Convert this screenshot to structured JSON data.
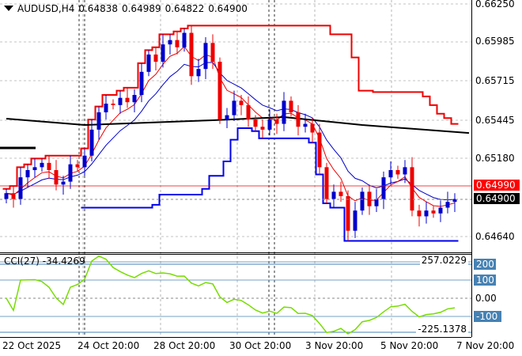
{
  "header": {
    "symbol": "AUDUSD,H4",
    "open": "0.64838",
    "high": "0.64989",
    "low": "0.64822",
    "close": "0.64900"
  },
  "price_axis": {
    "labels": [
      "0.66250",
      "0.65985",
      "0.65715",
      "0.65445",
      "0.65180",
      "0.64640"
    ],
    "ask_label": "0.64990",
    "bid_label": "0.64900"
  },
  "cci": {
    "label": "CCI(27) -34.4269",
    "max_label": "257.0229",
    "min_label": "-225.1378",
    "levels": [
      "200",
      "100",
      "0.00",
      "-100"
    ]
  },
  "time_axis": [
    "22 Oct 2025",
    "24 Oct 20:00",
    "28 Oct 20:00",
    "30 Oct 20:00",
    "3 Nov 20:00",
    "5 Nov 20:00",
    "7 Nov 20:00"
  ],
  "colors": {
    "bull": "#0000cc",
    "bear": "#ee0000",
    "cci": "#77dd00",
    "ma_long": "#000000",
    "level_box": "#4682b4"
  },
  "chart_data": {
    "type": "candlestick",
    "closes": [
      0.6494,
      0.649,
      0.6505,
      0.651,
      0.6512,
      0.6515,
      0.651,
      0.65,
      0.6502,
      0.6514,
      0.6512,
      0.652,
      0.6538,
      0.655,
      0.6556,
      0.6555,
      0.656,
      0.6557,
      0.6562,
      0.6578,
      0.659,
      0.6585,
      0.6597,
      0.66,
      0.6595,
      0.6605,
      0.6575,
      0.658,
      0.6598,
      0.6585,
      0.6545,
      0.6548,
      0.6558,
      0.6555,
      0.6545,
      0.654,
      0.6538,
      0.6545,
      0.6542,
      0.6558,
      0.655,
      0.654,
      0.6542,
      0.6536,
      0.6512,
      0.649,
      0.6495,
      0.6492,
      0.6468,
      0.6482,
      0.6495,
      0.6485,
      0.649,
      0.6505,
      0.651,
      0.6507,
      0.6512,
      0.6482,
      0.6478,
      0.6482,
      0.648,
      0.6484,
      0.6488,
      0.649
    ],
    "ma_long": [
      [
        0,
        0.65456
      ],
      [
        11,
        0.65412
      ],
      [
        29,
        0.65445
      ],
      [
        39,
        0.65467
      ],
      [
        50,
        0.65412
      ],
      [
        65,
        0.65357
      ]
    ],
    "ylim": [
      0.6464,
      0.6625
    ]
  }
}
